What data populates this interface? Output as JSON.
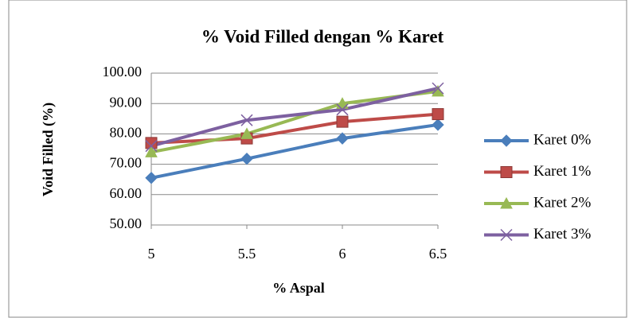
{
  "chart_data": {
    "type": "line",
    "title": "% Void Filled dengan % Karet",
    "xlabel": "% Aspal",
    "ylabel": "Void Filled (%)",
    "x": [
      5,
      5.5,
      6,
      6.5
    ],
    "xlim": [
      5,
      6.5
    ],
    "xticks": [
      5,
      5.5,
      6,
      6.5
    ],
    "ylim": [
      50,
      100
    ],
    "yticks": [
      {
        "value": 50,
        "label": "50.00"
      },
      {
        "value": 60,
        "label": "60.00"
      },
      {
        "value": 70,
        "label": "70.00"
      },
      {
        "value": 80,
        "label": "80.00"
      },
      {
        "value": 90,
        "label": "90.00"
      },
      {
        "value": 100,
        "label": "100.00"
      }
    ],
    "grid": true,
    "legend": "right",
    "series": [
      {
        "name": "Karet 0%",
        "color": "#4a7ebb",
        "marker": "diamond",
        "values": [
          65.5,
          71.8,
          78.5,
          83
        ]
      },
      {
        "name": "Karet 1%",
        "color": "#be4b48",
        "marker": "square",
        "values": [
          77,
          78.5,
          84,
          86.5
        ]
      },
      {
        "name": "Karet 2%",
        "color": "#98b954",
        "marker": "triangle",
        "values": [
          74,
          80,
          90,
          94
        ]
      },
      {
        "name": "Karet 3%",
        "color": "#7d60a0",
        "marker": "x",
        "values": [
          76,
          84.5,
          88,
          95
        ]
      }
    ]
  }
}
